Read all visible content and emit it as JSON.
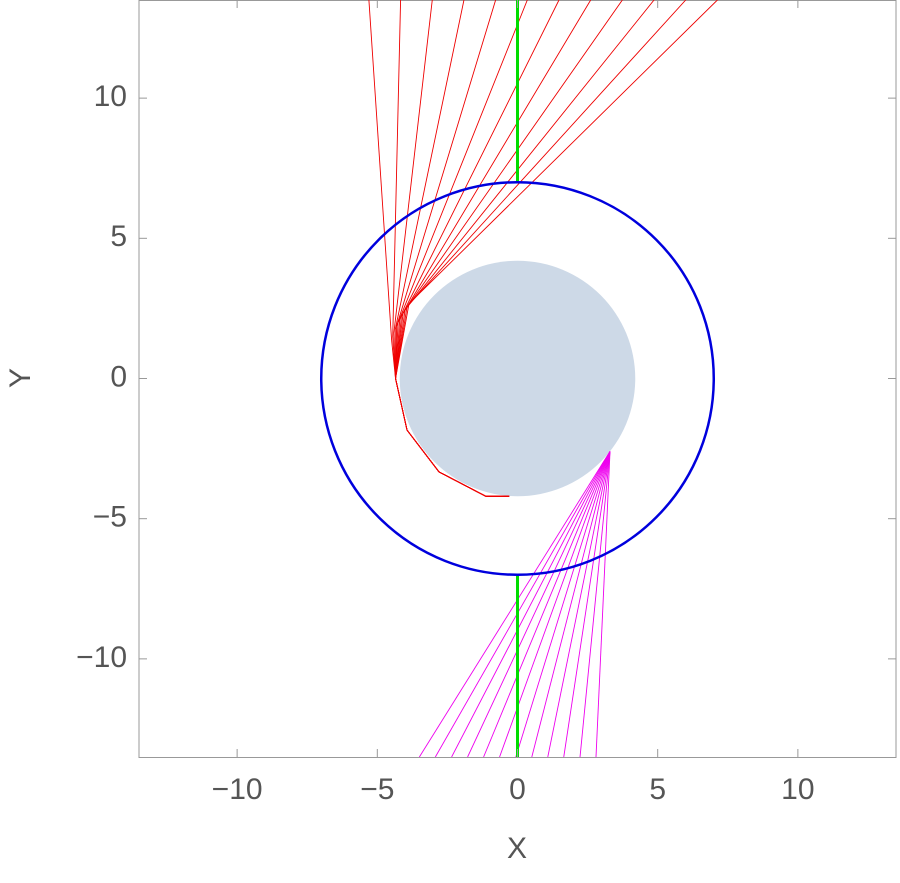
{
  "chart_data": {
    "type": "line",
    "xlabel": "X",
    "ylabel": "Y",
    "xlim": [
      -13.5,
      13.5
    ],
    "ylim": [
      -13.5,
      13.5
    ],
    "xticks": [
      {
        "value": -10,
        "label": "−10"
      },
      {
        "value": -5,
        "label": "−5"
      },
      0,
      5,
      10
    ],
    "yticks": [
      {
        "value": -10,
        "label": "−10"
      },
      {
        "value": -5,
        "label": "−5"
      },
      0,
      5,
      10
    ],
    "circles": [
      {
        "x": 0,
        "y": 0,
        "r": 4.2,
        "fill": "#cdd9e7"
      },
      {
        "x": 0,
        "y": 0,
        "r": 7,
        "stroke": "#0000dd"
      }
    ],
    "series": [
      {
        "color": "#ee0000",
        "x": [
          -5.3,
          -4.49,
          -4.35,
          -3.94,
          -2.8,
          -1.13,
          -0.3
        ],
        "y": [
          13.5,
          1.37,
          0,
          -1.84,
          -3.33,
          -4.2,
          -4.2
        ]
      },
      {
        "color": "#ee0000",
        "x": [
          -4.17,
          -4.45,
          -4.35,
          -3.94,
          -2.8,
          -1.13,
          -0.3
        ],
        "y": [
          13.5,
          1.5,
          0,
          -1.84,
          -3.33,
          -4.2,
          -4.2
        ]
      },
      {
        "color": "#ee0000",
        "x": [
          -3.04,
          -4.41,
          -4.35,
          -3.94,
          -2.8,
          -1.13,
          -0.3
        ],
        "y": [
          13.5,
          1.62,
          0,
          -1.84,
          -3.33,
          -4.2,
          -4.2
        ]
      },
      {
        "color": "#ee0000",
        "x": [
          -1.91,
          -4.36,
          -4.35,
          -3.94,
          -2.8,
          -1.13,
          -0.3
        ],
        "y": [
          13.5,
          1.75,
          0,
          -1.84,
          -3.33,
          -4.2,
          -4.2
        ]
      },
      {
        "color": "#ee0000",
        "x": [
          -0.78,
          -4.31,
          -4.35,
          -3.94,
          -2.8,
          -1.13,
          -0.3
        ],
        "y": [
          13.5,
          1.87,
          0,
          -1.84,
          -3.33,
          -4.2,
          -4.2
        ]
      },
      {
        "color": "#ee0000",
        "x": [
          0.35,
          -4.26,
          -4.35,
          -3.94,
          -2.8,
          -1.13,
          -0.3
        ],
        "y": [
          13.5,
          1.99,
          0,
          -1.84,
          -3.33,
          -4.2,
          -4.2
        ]
      },
      {
        "color": "#ee0000",
        "x": [
          1.48,
          -4.2,
          -4.35,
          -3.94,
          -2.8,
          -1.13,
          -0.3
        ],
        "y": [
          13.5,
          2.1,
          0,
          -1.84,
          -3.33,
          -4.2,
          -4.2
        ]
      },
      {
        "color": "#ee0000",
        "x": [
          2.61,
          -4.14,
          -4.35,
          -3.94,
          -2.8,
          -1.13,
          -0.3
        ],
        "y": [
          13.5,
          2.22,
          0,
          -1.84,
          -3.33,
          -4.2,
          -4.2
        ]
      },
      {
        "color": "#ee0000",
        "x": [
          3.74,
          -4.08,
          -4.35,
          -3.94,
          -2.8,
          -1.13,
          -0.3
        ],
        "y": [
          13.5,
          2.34,
          0,
          -1.84,
          -3.33,
          -4.2,
          -4.2
        ]
      },
      {
        "color": "#ee0000",
        "x": [
          4.87,
          -4.01,
          -4.35,
          -3.94,
          -2.8,
          -1.13,
          -0.3
        ],
        "y": [
          13.5,
          2.45,
          0,
          -1.84,
          -3.33,
          -4.2,
          -4.2
        ]
      },
      {
        "color": "#ee0000",
        "x": [
          6.0,
          -3.94,
          -4.35,
          -3.94,
          -2.8,
          -1.13,
          -0.3
        ],
        "y": [
          13.5,
          2.56,
          0,
          -1.84,
          -3.33,
          -4.2,
          -4.2
        ]
      },
      {
        "color": "#ee0000",
        "x": [
          7.13,
          -3.87,
          -4.35,
          -3.94,
          -2.8,
          -1.13,
          -0.3
        ],
        "y": [
          13.5,
          2.67,
          0,
          -1.84,
          -3.33,
          -4.2,
          -4.2
        ]
      },
      {
        "color": "#ee00ee",
        "x": [
          -3.5,
          3.3
        ],
        "y": [
          -13.5,
          -2.6
        ]
      },
      {
        "color": "#ee00ee",
        "x": [
          -2.93,
          3.3
        ],
        "y": [
          -13.5,
          -2.6
        ]
      },
      {
        "color": "#ee00ee",
        "x": [
          -2.35,
          3.3
        ],
        "y": [
          -13.5,
          -2.6
        ]
      },
      {
        "color": "#ee00ee",
        "x": [
          -1.78,
          3.3
        ],
        "y": [
          -13.5,
          -2.6
        ]
      },
      {
        "color": "#ee00ee",
        "x": [
          -1.21,
          3.3
        ],
        "y": [
          -13.5,
          -2.6
        ]
      },
      {
        "color": "#ee00ee",
        "x": [
          -0.64,
          3.3
        ],
        "y": [
          -13.5,
          -2.6
        ]
      },
      {
        "color": "#ee00ee",
        "x": [
          -0.06,
          3.3
        ],
        "y": [
          -13.5,
          -2.6
        ]
      },
      {
        "color": "#ee00ee",
        "x": [
          0.51,
          3.3
        ],
        "y": [
          -13.5,
          -2.6
        ]
      },
      {
        "color": "#ee00ee",
        "x": [
          1.08,
          3.3
        ],
        "y": [
          -13.5,
          -2.6
        ]
      },
      {
        "color": "#ee00ee",
        "x": [
          1.65,
          3.3
        ],
        "y": [
          -13.5,
          -2.6
        ]
      },
      {
        "color": "#ee00ee",
        "x": [
          2.23,
          3.3
        ],
        "y": [
          -13.5,
          -2.6
        ]
      },
      {
        "color": "#ee00ee",
        "x": [
          2.8,
          3.3
        ],
        "y": [
          -13.5,
          -2.6
        ]
      },
      {
        "color": "#00dd00",
        "width": 3,
        "x": [
          0,
          0,
          null,
          0,
          0
        ],
        "y": [
          13.5,
          7,
          null,
          -7,
          -13.5
        ]
      }
    ]
  }
}
